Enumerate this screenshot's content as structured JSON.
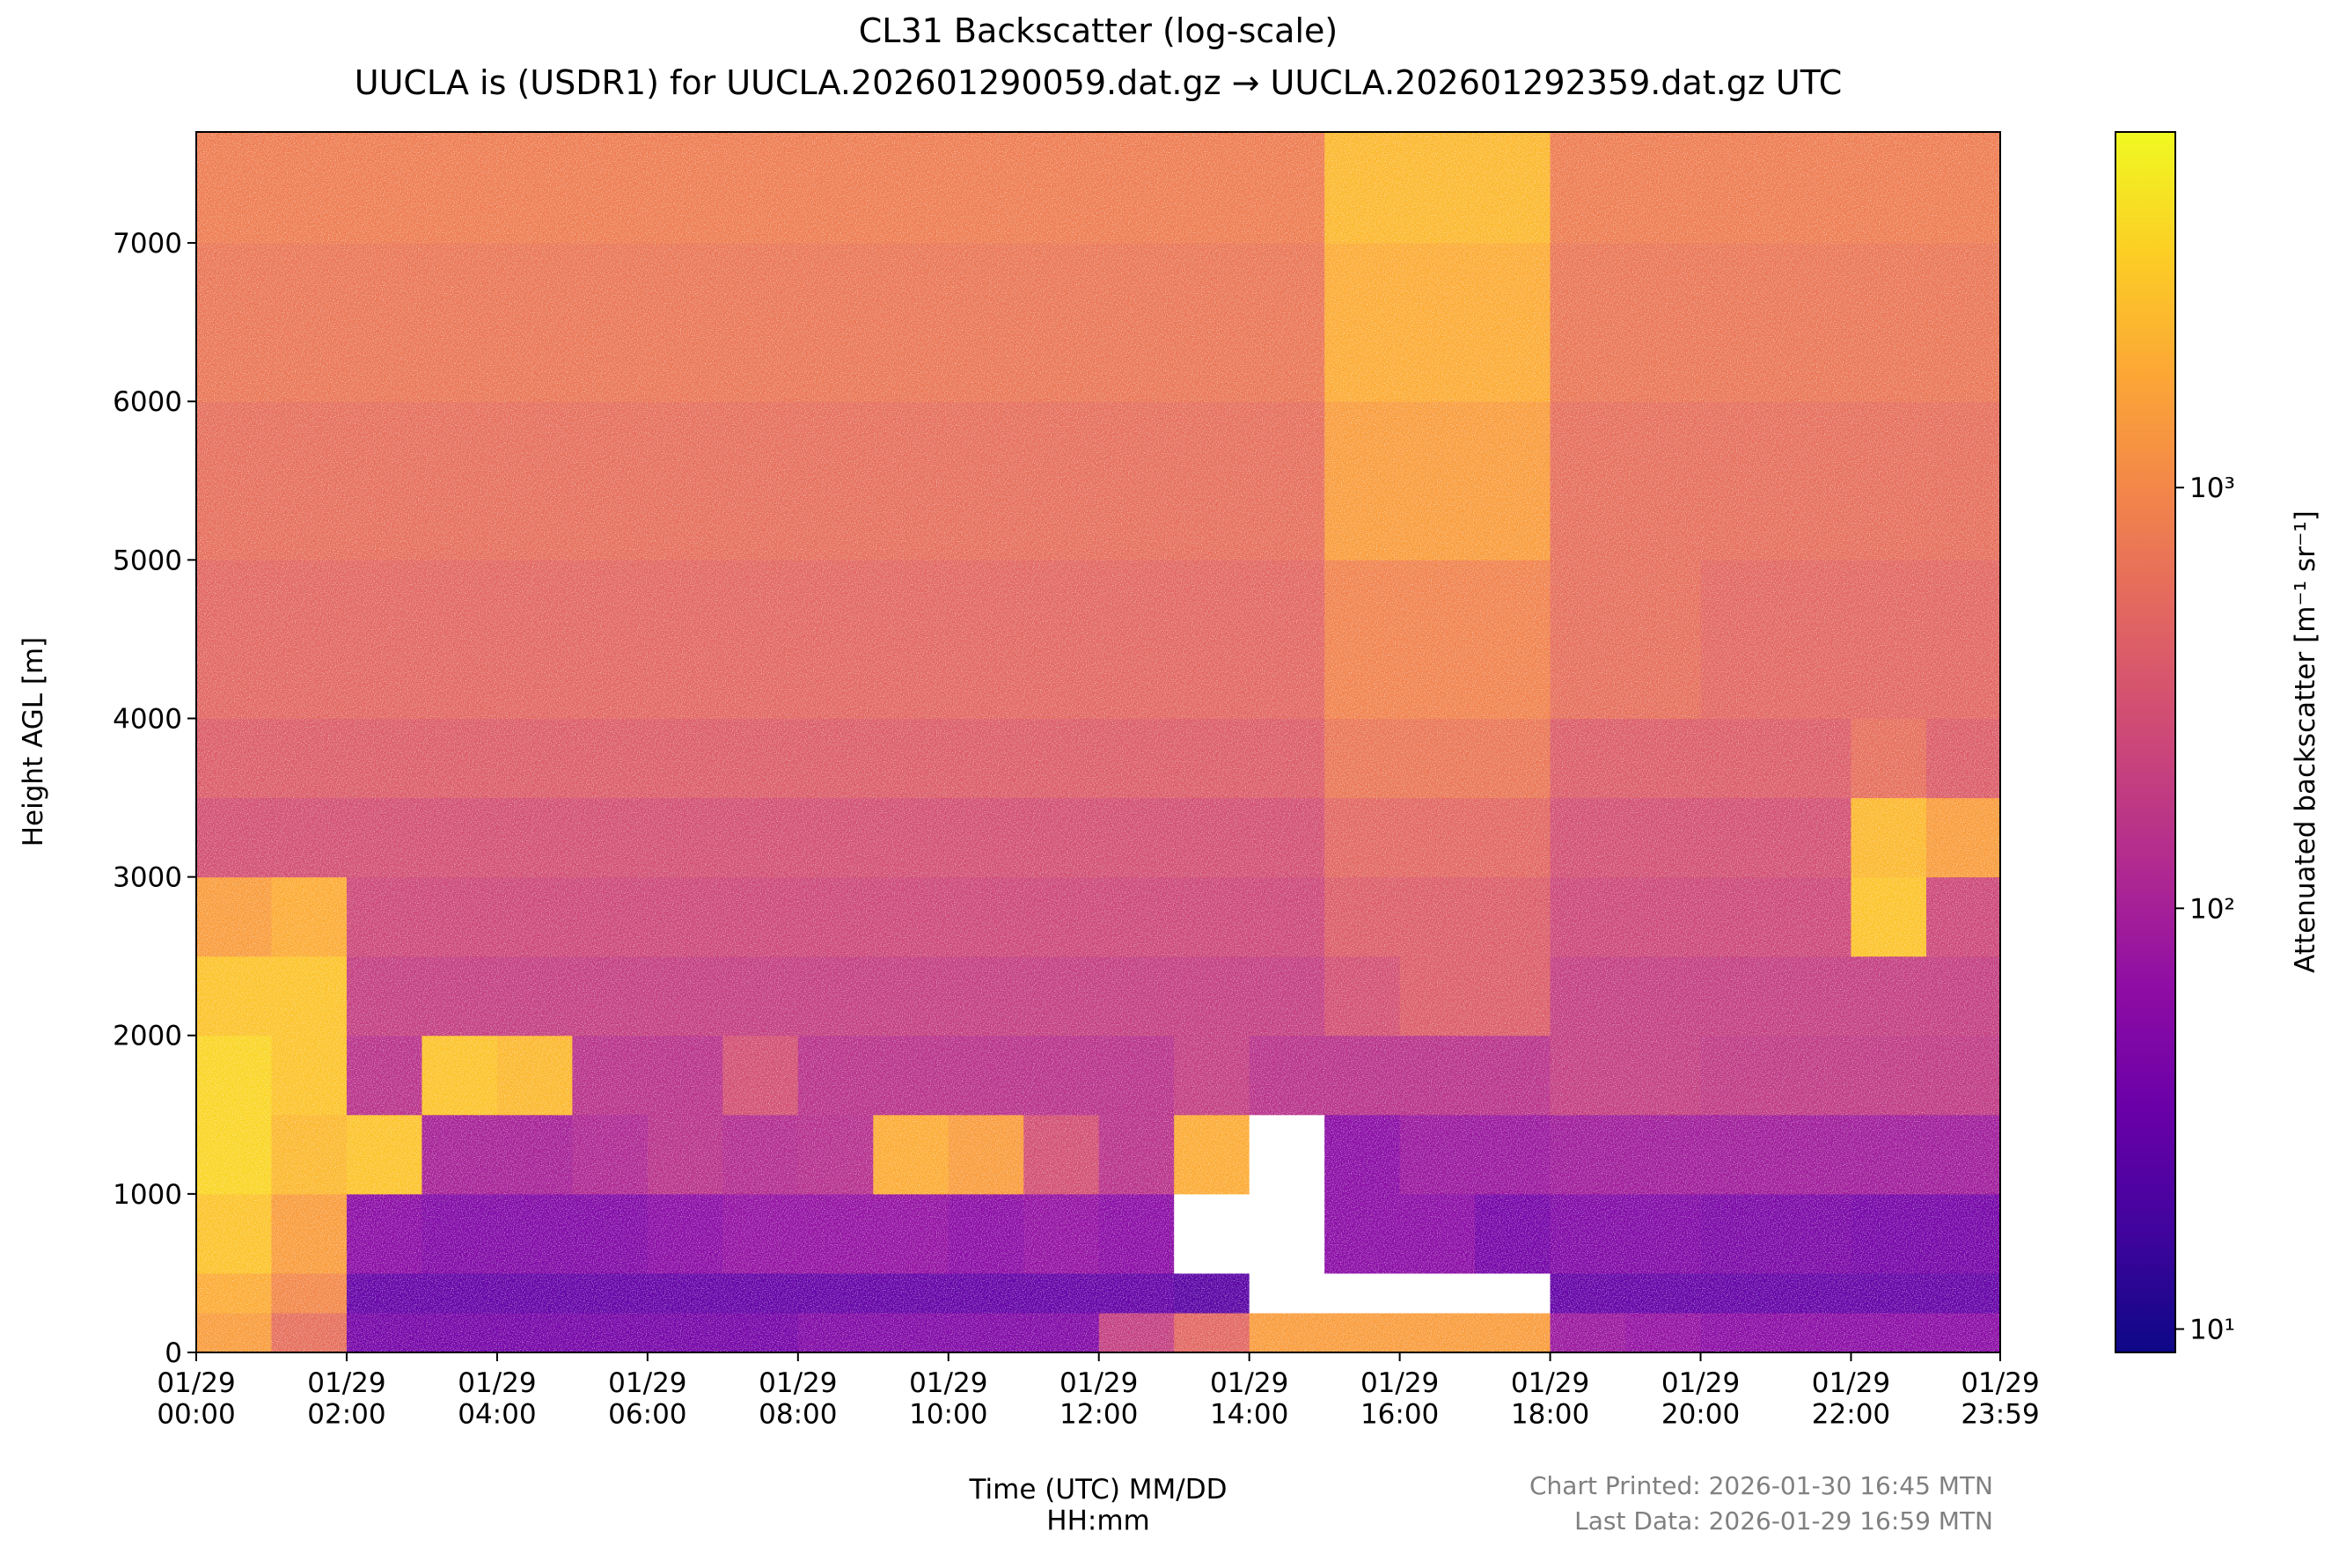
{
  "chart_data": {
    "type": "heatmap",
    "title": "CL31 Backscatter (log-scale)",
    "subtitle": "UUCLA is (USDR1) for UUCLA.202601290059.dat.gz → UUCLA.202601292359.dat.gz UTC",
    "x_label": "Time (UTC) MM/DD\nHH:mm",
    "y_label": "Height AGL [m]",
    "colorbar_label": "Attenuated backscatter [m⁻¹ sr⁻¹]",
    "notes": [
      "Chart Printed: 2026-01-30 16:45 MTN",
      "Last Data: 2026-01-29 16:59 MTN"
    ],
    "colormap": "plasma",
    "under_color": "#ffffff",
    "color_scale": "log",
    "clim": [
      8.8,
      7000
    ],
    "cticks": [
      {
        "value": 10,
        "label": "10¹"
      },
      {
        "value": 100,
        "label": "10²"
      },
      {
        "value": 1000,
        "label": "10³"
      }
    ],
    "xlim": [
      0,
      1439
    ],
    "xticks": [
      {
        "value": 0,
        "label": "01/29\n00:00"
      },
      {
        "value": 120,
        "label": "01/29\n02:00"
      },
      {
        "value": 240,
        "label": "01/29\n04:00"
      },
      {
        "value": 360,
        "label": "01/29\n06:00"
      },
      {
        "value": 480,
        "label": "01/29\n08:00"
      },
      {
        "value": 600,
        "label": "01/29\n10:00"
      },
      {
        "value": 720,
        "label": "01/29\n12:00"
      },
      {
        "value": 840,
        "label": "01/29\n14:00"
      },
      {
        "value": 960,
        "label": "01/29\n16:00"
      },
      {
        "value": 1080,
        "label": "01/29\n18:00"
      },
      {
        "value": 1200,
        "label": "01/29\n20:00"
      },
      {
        "value": 1320,
        "label": "01/29\n22:00"
      },
      {
        "value": 1439,
        "label": "01/29\n23:59"
      }
    ],
    "ylim": [
      0,
      7700
    ],
    "yticks": [
      0,
      1000,
      2000,
      3000,
      4000,
      5000,
      6000,
      7000
    ],
    "xbins": [
      0,
      60,
      120,
      180,
      240,
      300,
      360,
      420,
      480,
      540,
      600,
      660,
      720,
      780,
      840,
      900,
      960,
      1020,
      1080,
      1140,
      1200,
      1260,
      1320,
      1380,
      1440
    ],
    "ybins": [
      0,
      250,
      500,
      1000,
      1500,
      2000,
      2500,
      3000,
      3500,
      4000,
      5000,
      6000,
      7000,
      7700
    ],
    "z": [
      [
        1500,
        600,
        40,
        40,
        40,
        40,
        40,
        40,
        50,
        50,
        50,
        50,
        200,
        500,
        1500,
        1500,
        1500,
        1500,
        80,
        70,
        60,
        60,
        60,
        60
      ],
      [
        2000,
        1000,
        30,
        30,
        30,
        30,
        30,
        30,
        30,
        30,
        30,
        30,
        30,
        25,
        5,
        5,
        5,
        5,
        30,
        30,
        30,
        30,
        30,
        30
      ],
      [
        3000,
        1500,
        60,
        50,
        50,
        50,
        60,
        70,
        70,
        70,
        60,
        70,
        60,
        5,
        5,
        60,
        60,
        40,
        50,
        50,
        45,
        45,
        40,
        40
      ],
      [
        4000,
        2500,
        3000,
        100,
        100,
        120,
        150,
        130,
        140,
        2000,
        1500,
        300,
        150,
        2000,
        5,
        60,
        80,
        80,
        90,
        90,
        90,
        90,
        90,
        90
      ],
      [
        4000,
        3000,
        150,
        3000,
        2500,
        150,
        150,
        300,
        150,
        150,
        150,
        150,
        150,
        200,
        150,
        150,
        150,
        150,
        200,
        200,
        180,
        180,
        180,
        180
      ],
      [
        3000,
        3000,
        200,
        200,
        200,
        200,
        200,
        200,
        200,
        200,
        200,
        200,
        200,
        200,
        200,
        300,
        400,
        400,
        200,
        200,
        200,
        200,
        200,
        200
      ],
      [
        1500,
        2000,
        250,
        250,
        250,
        250,
        250,
        250,
        250,
        250,
        250,
        250,
        250,
        250,
        250,
        400,
        400,
        400,
        250,
        250,
        250,
        250,
        3000,
        250
      ],
      [
        300,
        300,
        300,
        300,
        300,
        300,
        300,
        300,
        300,
        300,
        300,
        300,
        300,
        300,
        300,
        500,
        500,
        500,
        300,
        300,
        300,
        300,
        2500,
        1500
      ],
      [
        400,
        400,
        400,
        400,
        400,
        400,
        400,
        400,
        400,
        400,
        400,
        400,
        400,
        400,
        400,
        700,
        700,
        700,
        400,
        400,
        400,
        400,
        600,
        400
      ],
      [
        500,
        500,
        500,
        500,
        500,
        500,
        500,
        500,
        500,
        500,
        500,
        500,
        500,
        500,
        500,
        900,
        900,
        900,
        600,
        600,
        500,
        500,
        500,
        500
      ],
      [
        600,
        600,
        600,
        600,
        600,
        600,
        600,
        600,
        600,
        600,
        600,
        600,
        600,
        600,
        600,
        1500,
        1500,
        1500,
        600,
        600,
        600,
        600,
        600,
        600
      ],
      [
        700,
        700,
        700,
        700,
        700,
        700,
        700,
        700,
        700,
        700,
        700,
        700,
        700,
        700,
        700,
        2000,
        2000,
        2000,
        700,
        700,
        700,
        700,
        700,
        700
      ],
      [
        800,
        800,
        800,
        800,
        800,
        800,
        800,
        800,
        800,
        800,
        800,
        800,
        800,
        800,
        800,
        2500,
        2500,
        2500,
        800,
        800,
        800,
        800,
        800,
        800
      ]
    ]
  }
}
